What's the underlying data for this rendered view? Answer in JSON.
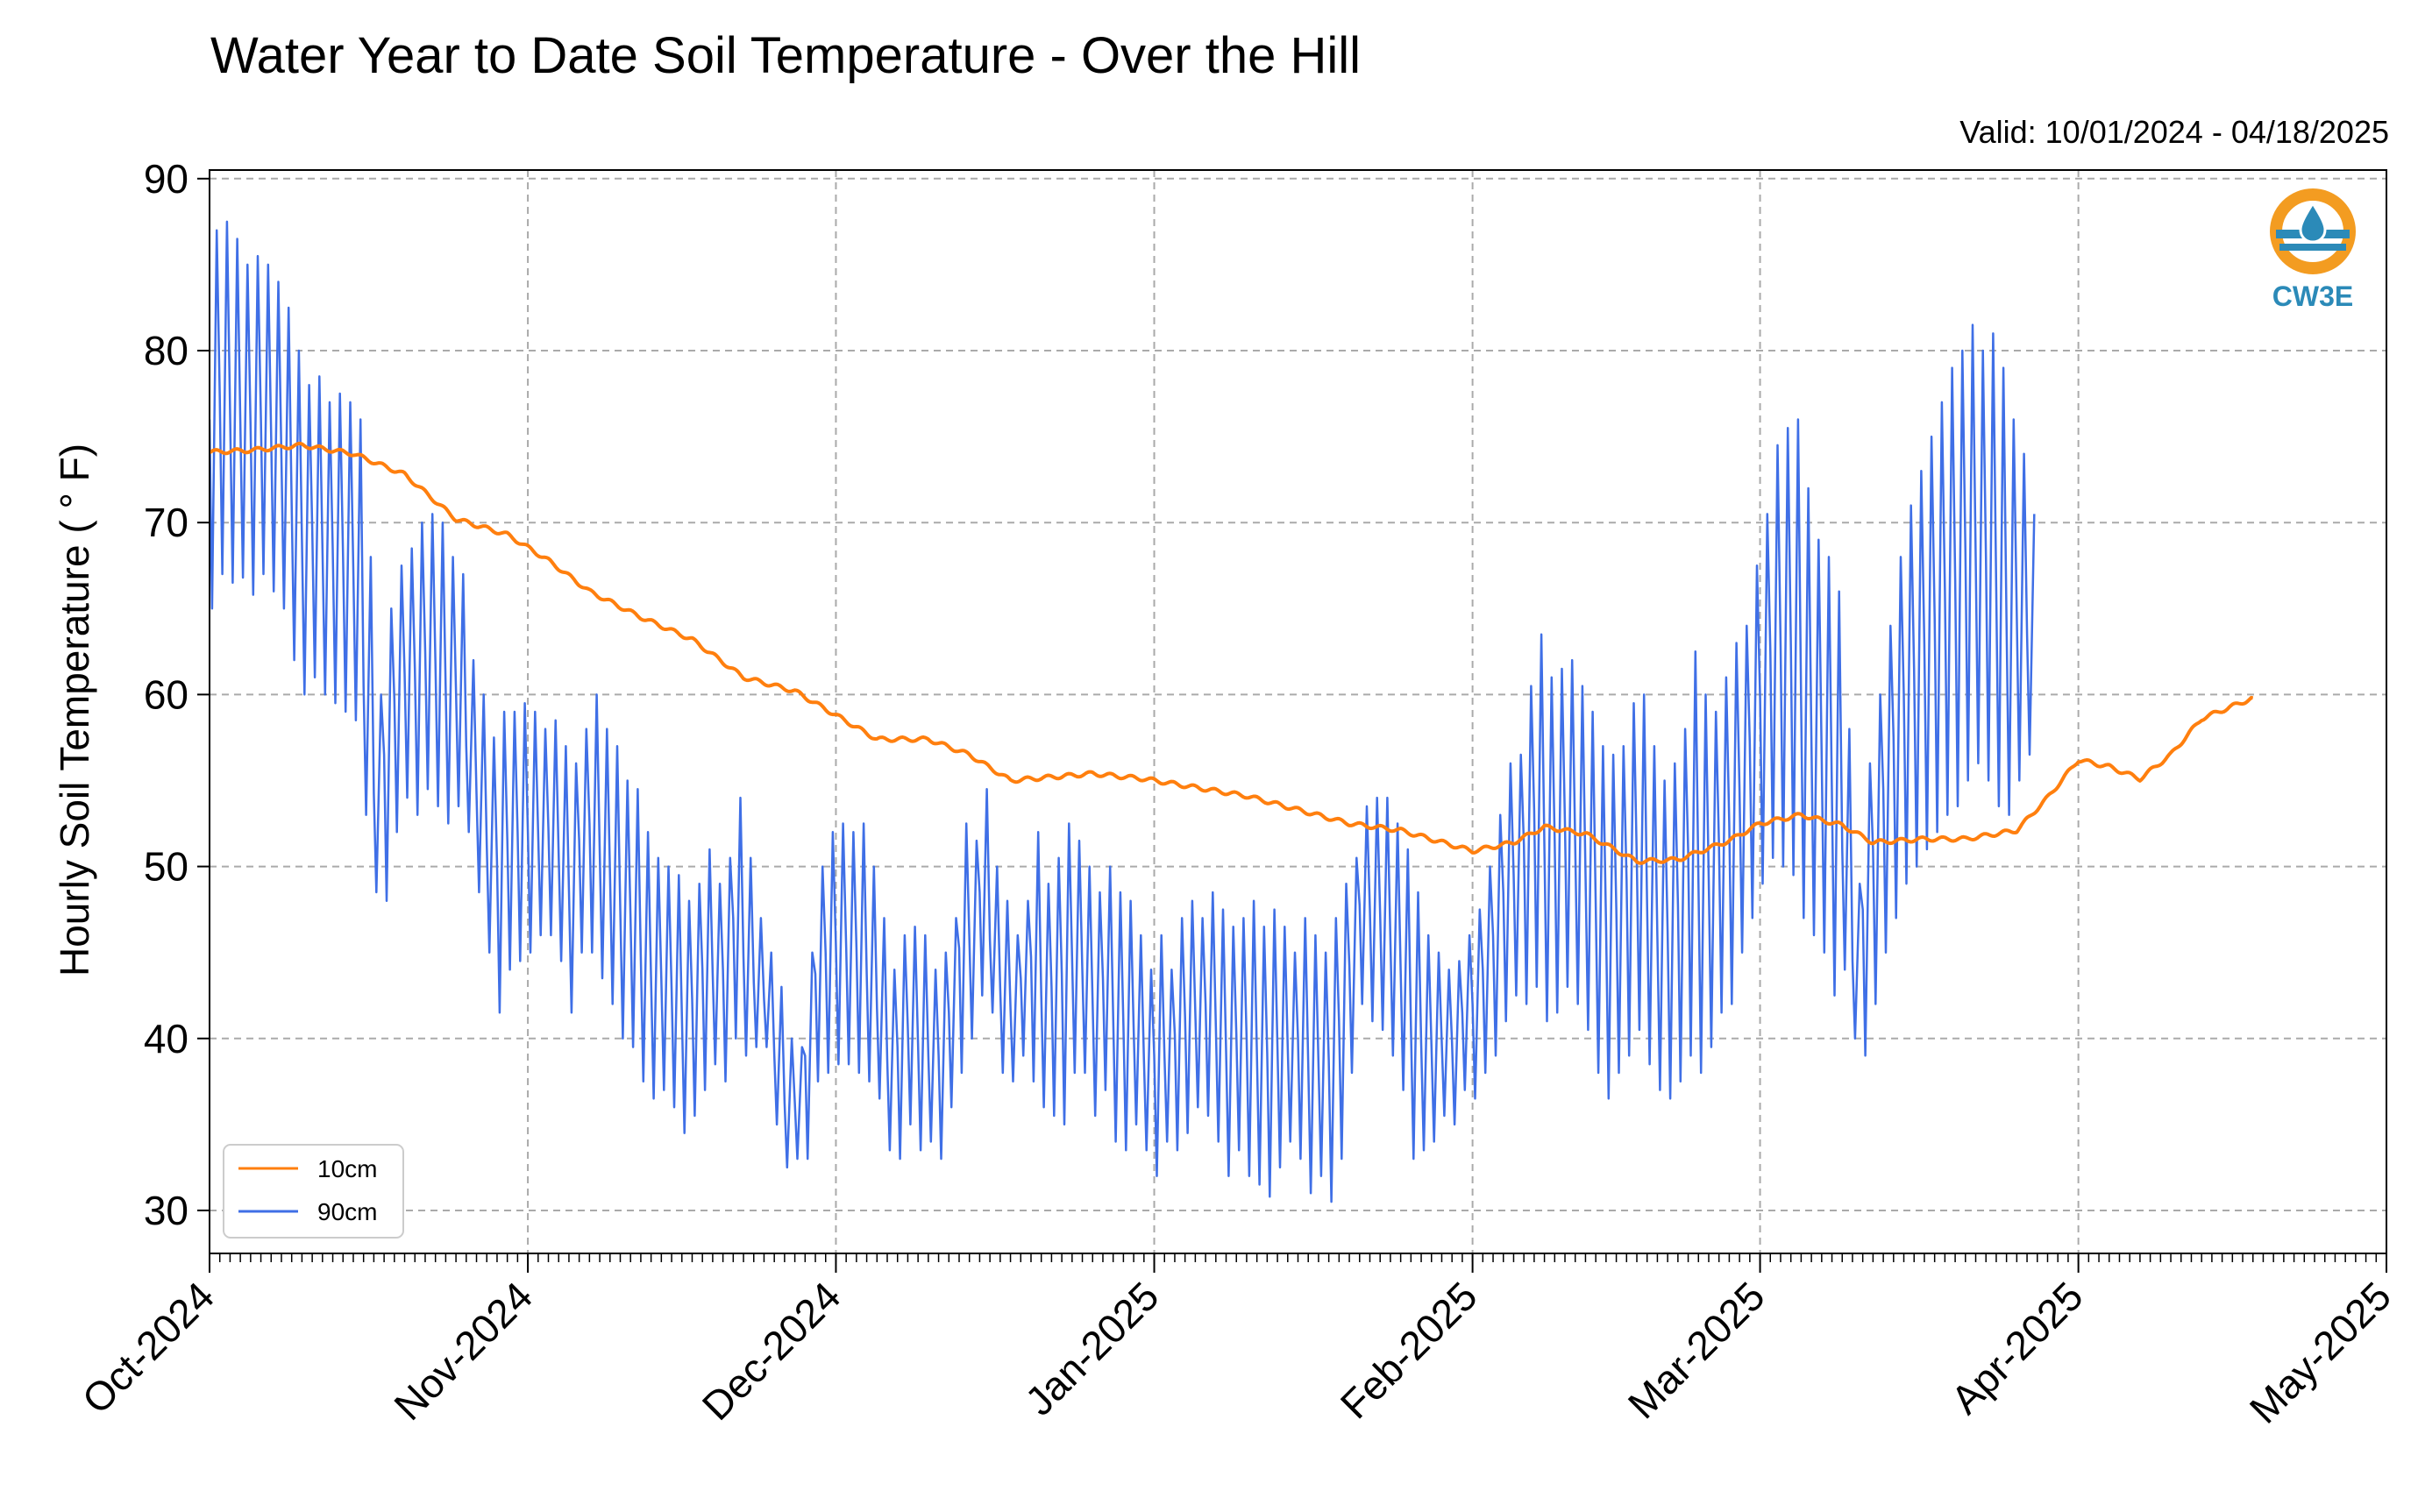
{
  "header": {
    "title": "Water Year to Date Soil Temperature - Over the Hill",
    "valid_range": "Valid: 10/01/2024 - 04/18/2025"
  },
  "logo": {
    "text": "CW3E",
    "icon": "water-drop-logo-icon",
    "colors": {
      "ring": "#f39c21",
      "wave": "#2b8ab8"
    }
  },
  "legend": {
    "placement": "lower-left"
  },
  "chart_data": {
    "type": "line",
    "title": "Water Year to Date Soil Temperature - Over the Hill",
    "xlabel": "",
    "ylabel": "Hourly Soil Temperature ($^\\circ$F)",
    "ylabel_display": "Hourly Soil Temperature ( ° F)",
    "xlim": [
      "2024-10-01",
      "2025-05-01"
    ],
    "ylim": [
      27.5,
      90.5
    ],
    "yticks": [
      30,
      40,
      50,
      60,
      70,
      80,
      90
    ],
    "xticks": [
      {
        "date": "2024-10-01",
        "label": "Oct-2024"
      },
      {
        "date": "2024-11-01",
        "label": "Nov-2024"
      },
      {
        "date": "2024-12-01",
        "label": "Dec-2024"
      },
      {
        "date": "2025-01-01",
        "label": "Jan-2025"
      },
      {
        "date": "2025-02-01",
        "label": "Feb-2025"
      },
      {
        "date": "2025-03-01",
        "label": "Mar-2025"
      },
      {
        "date": "2025-04-01",
        "label": "Apr-2025"
      },
      {
        "date": "2025-05-01",
        "label": "May-2025"
      }
    ],
    "grid": true,
    "series": [
      {
        "name": "10cm",
        "color": "#ff7f0e",
        "points": [
          [
            "2024-10-01",
            74.1
          ],
          [
            "2024-10-05",
            74.2
          ],
          [
            "2024-10-10",
            74.5
          ],
          [
            "2024-10-15",
            74.0
          ],
          [
            "2024-10-20",
            72.8
          ],
          [
            "2024-10-25",
            70.2
          ],
          [
            "2024-10-30",
            69.3
          ],
          [
            "2024-11-03",
            67.8
          ],
          [
            "2024-11-07",
            66.0
          ],
          [
            "2024-11-12",
            64.5
          ],
          [
            "2024-11-17",
            63.2
          ],
          [
            "2024-11-22",
            61.0
          ],
          [
            "2024-11-27",
            60.2
          ],
          [
            "2024-12-01",
            58.8
          ],
          [
            "2024-12-05",
            57.4
          ],
          [
            "2024-12-10",
            57.4
          ],
          [
            "2024-12-14",
            56.5
          ],
          [
            "2024-12-18",
            55.0
          ],
          [
            "2024-12-22",
            55.2
          ],
          [
            "2024-12-26",
            55.4
          ],
          [
            "2024-12-31",
            55.1
          ],
          [
            "2025-01-05",
            54.6
          ],
          [
            "2025-01-10",
            54.1
          ],
          [
            "2025-01-15",
            53.3
          ],
          [
            "2025-01-20",
            52.5
          ],
          [
            "2025-01-25",
            52.1
          ],
          [
            "2025-02-01",
            50.9
          ],
          [
            "2025-02-05",
            51.4
          ],
          [
            "2025-02-08",
            52.3
          ],
          [
            "2025-02-12",
            51.9
          ],
          [
            "2025-02-17",
            50.3
          ],
          [
            "2025-02-21",
            50.4
          ],
          [
            "2025-02-26",
            51.5
          ],
          [
            "2025-03-01",
            52.5
          ],
          [
            "2025-03-05",
            53.0
          ],
          [
            "2025-03-09",
            52.4
          ],
          [
            "2025-03-12",
            51.4
          ],
          [
            "2025-03-17",
            51.6
          ],
          [
            "2025-03-21",
            51.6
          ],
          [
            "2025-03-26",
            52.1
          ],
          [
            "2025-03-29",
            54.0
          ],
          [
            "2025-04-01",
            56.2
          ],
          [
            "2025-04-04",
            55.8
          ],
          [
            "2025-04-07",
            55.1
          ],
          [
            "2025-04-10",
            56.5
          ],
          [
            "2025-04-13",
            58.6
          ],
          [
            "2025-04-18",
            59.8
          ]
        ]
      },
      {
        "name": "90cm",
        "color": "#3f6fe6",
        "diurnal_daily": [
          [
            87.0,
            65.0
          ],
          [
            87.5,
            67.0
          ],
          [
            86.5,
            66.5
          ],
          [
            85.0,
            66.8
          ],
          [
            85.5,
            65.8
          ],
          [
            85.0,
            67.0
          ],
          [
            84.0,
            66.0
          ],
          [
            82.5,
            65.0
          ],
          [
            80.0,
            62.0
          ],
          [
            78.0,
            60.0
          ],
          [
            78.5,
            61.0
          ],
          [
            77.0,
            60.0
          ],
          [
            77.5,
            59.5
          ],
          [
            77.0,
            59.0
          ],
          [
            76.0,
            58.5
          ],
          [
            68.0,
            53.0
          ],
          [
            60.0,
            48.5
          ],
          [
            65.0,
            48.0
          ],
          [
            67.5,
            52.0
          ],
          [
            68.5,
            54.0
          ],
          [
            70.0,
            53.0
          ],
          [
            70.5,
            54.5
          ],
          [
            70.0,
            53.5
          ],
          [
            68.0,
            52.5
          ],
          [
            67.0,
            53.5
          ],
          [
            62.0,
            52.0
          ],
          [
            60.0,
            48.5
          ],
          [
            57.5,
            45.0
          ],
          [
            59.0,
            41.5
          ],
          [
            59.0,
            44.0
          ],
          [
            59.5,
            44.5
          ],
          [
            59.0,
            45.0
          ],
          [
            58.0,
            46.0
          ],
          [
            58.5,
            46.0
          ],
          [
            57.0,
            44.5
          ],
          [
            56.0,
            41.5
          ],
          [
            58.0,
            45.0
          ],
          [
            60.0,
            45.0
          ],
          [
            58.0,
            43.5
          ],
          [
            57.0,
            42.0
          ],
          [
            55.0,
            40.0
          ],
          [
            54.5,
            39.5
          ],
          [
            52.0,
            37.5
          ],
          [
            50.5,
            36.5
          ],
          [
            50.0,
            37.0
          ],
          [
            49.5,
            36.0
          ],
          [
            48.0,
            34.5
          ],
          [
            49.0,
            35.5
          ],
          [
            51.0,
            37.0
          ],
          [
            49.0,
            38.5
          ],
          [
            50.5,
            37.5
          ],
          [
            54.0,
            40.0
          ],
          [
            50.5,
            39.0
          ],
          [
            47.0,
            39.5
          ],
          [
            45.0,
            39.5
          ],
          [
            43.0,
            35.0
          ],
          [
            40.0,
            32.5
          ],
          [
            39.5,
            33.0
          ],
          [
            45.0,
            33.0
          ],
          [
            50.0,
            37.5
          ],
          [
            52.0,
            38.0
          ],
          [
            52.5,
            38.5
          ],
          [
            52.0,
            38.5
          ],
          [
            52.5,
            38.0
          ],
          [
            50.0,
            37.5
          ],
          [
            47.0,
            36.5
          ],
          [
            44.0,
            33.5
          ],
          [
            46.0,
            33.0
          ],
          [
            46.5,
            35.0
          ],
          [
            46.0,
            33.5
          ],
          [
            44.0,
            34.0
          ],
          [
            45.0,
            33.0
          ],
          [
            47.0,
            36.0
          ],
          [
            52.5,
            38.0
          ],
          [
            51.5,
            40.0
          ],
          [
            54.5,
            42.5
          ],
          [
            50.0,
            41.5
          ],
          [
            48.0,
            38.0
          ],
          [
            46.0,
            37.5
          ],
          [
            48.0,
            39.0
          ],
          [
            52.0,
            37.5
          ],
          [
            49.0,
            36.0
          ],
          [
            50.5,
            35.5
          ],
          [
            52.5,
            35.0
          ],
          [
            51.5,
            38.0
          ],
          [
            50.0,
            38.0
          ],
          [
            48.5,
            35.5
          ],
          [
            50.0,
            37.0
          ],
          [
            48.5,
            34.0
          ],
          [
            48.0,
            33.5
          ],
          [
            46.0,
            35.0
          ],
          [
            44.0,
            33.5
          ],
          [
            46.0,
            32.0
          ],
          [
            44.0,
            34.0
          ],
          [
            47.0,
            33.5
          ],
          [
            48.0,
            34.5
          ],
          [
            47.0,
            36.0
          ],
          [
            48.5,
            35.5
          ],
          [
            47.5,
            34.0
          ],
          [
            46.5,
            32.0
          ],
          [
            47.0,
            33.5
          ],
          [
            48.0,
            32.0
          ],
          [
            46.5,
            31.5
          ],
          [
            47.5,
            30.8
          ],
          [
            46.5,
            32.5
          ],
          [
            45.0,
            34.0
          ],
          [
            47.0,
            33.0
          ],
          [
            46.0,
            31.0
          ],
          [
            45.0,
            32.0
          ],
          [
            47.0,
            30.5
          ],
          [
            49.0,
            33.0
          ],
          [
            50.5,
            38.0
          ],
          [
            53.5,
            42.0
          ],
          [
            54.0,
            41.0
          ],
          [
            54.0,
            40.5
          ],
          [
            52.5,
            39.0
          ],
          [
            51.0,
            37.0
          ],
          [
            48.5,
            33.0
          ],
          [
            46.0,
            33.5
          ],
          [
            45.0,
            34.0
          ],
          [
            44.0,
            35.5
          ],
          [
            44.5,
            35.0
          ],
          [
            46.0,
            37.0
          ],
          [
            47.5,
            36.5
          ],
          [
            50.0,
            38.0
          ],
          [
            53.0,
            39.0
          ],
          [
            56.0,
            41.0
          ],
          [
            56.5,
            42.5
          ],
          [
            60.5,
            42.0
          ],
          [
            63.5,
            43.0
          ],
          [
            61.0,
            41.0
          ],
          [
            61.5,
            41.5
          ],
          [
            62.0,
            43.0
          ],
          [
            60.5,
            42.0
          ],
          [
            59.0,
            40.5
          ],
          [
            57.0,
            38.0
          ],
          [
            56.5,
            36.5
          ],
          [
            57.0,
            38.0
          ],
          [
            59.5,
            39.0
          ],
          [
            60.0,
            40.5
          ],
          [
            57.0,
            38.5
          ],
          [
            55.0,
            37.0
          ],
          [
            56.0,
            36.5
          ],
          [
            58.0,
            37.5
          ],
          [
            62.5,
            39.0
          ],
          [
            60.0,
            38.0
          ],
          [
            59.0,
            39.5
          ],
          [
            61.0,
            41.5
          ],
          [
            63.0,
            42.0
          ],
          [
            64.0,
            45.0
          ],
          [
            67.5,
            47.0
          ],
          [
            70.5,
            49.0
          ],
          [
            74.5,
            50.5
          ],
          [
            75.5,
            50.0
          ],
          [
            76.0,
            49.5
          ],
          [
            72.0,
            47.0
          ],
          [
            69.0,
            46.0
          ],
          [
            68.0,
            45.0
          ],
          [
            66.0,
            42.5
          ],
          [
            58.0,
            44.0
          ],
          [
            49.0,
            40.0
          ],
          [
            56.0,
            39.0
          ],
          [
            60.0,
            42.0
          ],
          [
            64.0,
            45.0
          ],
          [
            68.0,
            47.0
          ],
          [
            71.0,
            49.0
          ],
          [
            73.0,
            50.0
          ],
          [
            75.0,
            51.0
          ],
          [
            77.0,
            52.0
          ],
          [
            79.0,
            53.0
          ],
          [
            80.0,
            53.5
          ],
          [
            81.5,
            55.0
          ],
          [
            80.0,
            56.0
          ],
          [
            81.0,
            55.0
          ],
          [
            79.0,
            53.5
          ],
          [
            76.0,
            53.0
          ],
          [
            74.0,
            55.0
          ],
          [
            70.5,
            56.5
          ]
        ]
      }
    ]
  }
}
